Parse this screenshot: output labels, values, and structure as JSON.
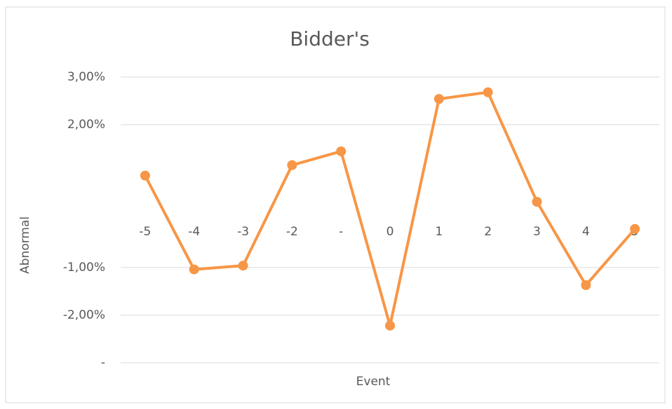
{
  "chart_data": {
    "type": "line",
    "title": "Bidder's",
    "x_label": "Event",
    "y_label": "Abnormal",
    "categories": [
      "-5",
      "-4",
      "-3",
      "-2",
      "-",
      "0",
      "1",
      "2",
      "3",
      "4",
      "5"
    ],
    "series": [
      {
        "name": "Abnormal",
        "color": "#f79646",
        "values": [
          0.93,
          -1.04,
          -0.96,
          1.15,
          1.44,
          -2.22,
          2.54,
          2.68,
          0.38,
          -1.37,
          -0.19
        ]
      }
    ],
    "ylim": [
      -3,
      3
    ],
    "yticks": [
      {
        "value": 3,
        "label": "3,00%"
      },
      {
        "value": 2,
        "label": "2,00%"
      },
      {
        "value": -1,
        "label": "-1,00%"
      },
      {
        "value": -2,
        "label": "-2,00%"
      },
      {
        "value": -3,
        "label": "-"
      }
    ],
    "grid": true,
    "legend": false
  }
}
